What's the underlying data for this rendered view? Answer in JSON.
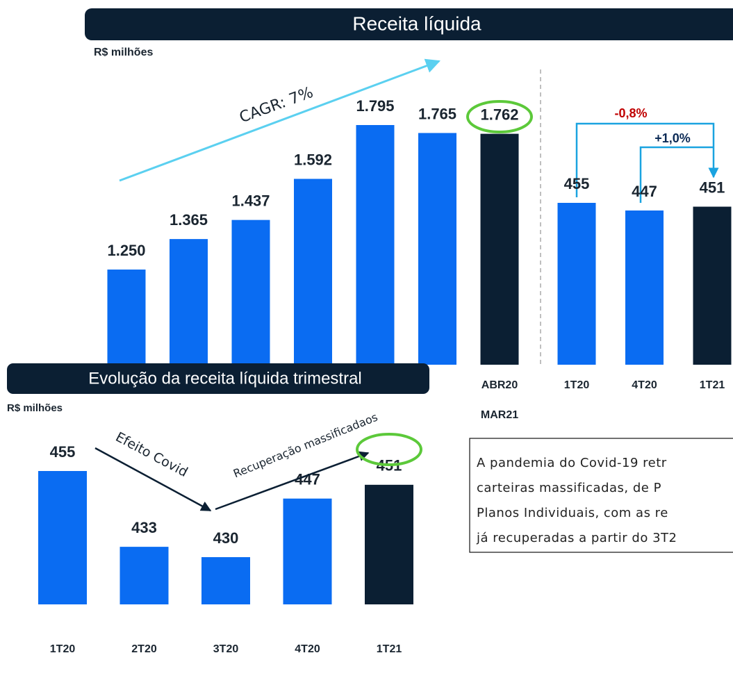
{
  "chart_data": [
    {
      "type": "bar",
      "title": "Receita líquida",
      "subtitle": "R$ milhões",
      "annotation": "CAGR: 7%",
      "categories": [
        null,
        null,
        null,
        null,
        null,
        null,
        [
          "ABR20",
          "MAR21"
        ]
      ],
      "values": [
        1250,
        1365,
        1437,
        1592,
        1795,
        1765,
        1762
      ],
      "value_labels": [
        "1.250",
        "1.365",
        "1.437",
        "1.592",
        "1.795",
        "1.765",
        "1.762"
      ],
      "colors": [
        "#0a6cf2",
        "#0a6cf2",
        "#0a6cf2",
        "#0a6cf2",
        "#0a6cf2",
        "#0a6cf2",
        "#0b1f33"
      ]
    },
    {
      "type": "bar",
      "annotations": [
        "-0,8%",
        "+1,0%"
      ],
      "categories": [
        "1T20",
        "4T20",
        "1T21"
      ],
      "values": [
        455,
        447,
        451
      ],
      "colors": [
        "#0a6cf2",
        "#0a6cf2",
        "#0b1f33"
      ]
    },
    {
      "type": "bar",
      "title": "Evolução da receita líquida trimestral",
      "subtitle": "R$ milhões",
      "annotations": [
        "Efeito Covid",
        "Recuperação massificadaos"
      ],
      "categories": [
        "1T20",
        "2T20",
        "3T20",
        "4T20",
        "1T21"
      ],
      "values": [
        455,
        433,
        430,
        447,
        451
      ],
      "colors": [
        "#0a6cf2",
        "#0a6cf2",
        "#0a6cf2",
        "#0a6cf2",
        "#0b1f33"
      ]
    }
  ],
  "text_box": {
    "lines": [
      "A pandemia do Covid-19 retr",
      "carteiras massificadas, de P",
      "Planos Individuais, com as re",
      "já recuperadas a partir do 3T2"
    ]
  }
}
